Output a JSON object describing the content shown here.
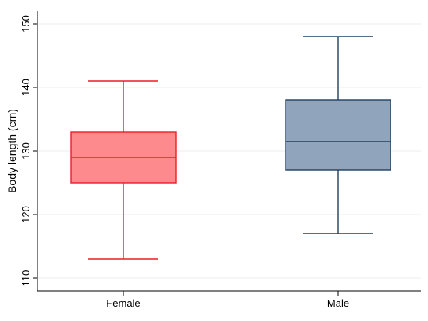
{
  "chart_data": {
    "type": "boxplot",
    "ylabel": "Body length (cm)",
    "ylim": [
      108,
      152
    ],
    "yticks": [
      110,
      120,
      130,
      140,
      150
    ],
    "grid": true,
    "categories": [
      "Female",
      "Male"
    ],
    "boxes": [
      {
        "category": "Female",
        "whisker_low": 113,
        "q1": 125,
        "median": 129,
        "q3": 133,
        "whisker_high": 141,
        "stroke": "#ee1c25",
        "fill": "#fd8a8c"
      },
      {
        "category": "Male",
        "whisker_low": 117,
        "q1": 127,
        "median": 131.5,
        "q3": 138,
        "whisker_high": 148,
        "stroke": "#1f3f5f",
        "fill": "#90a4bc"
      }
    ]
  }
}
